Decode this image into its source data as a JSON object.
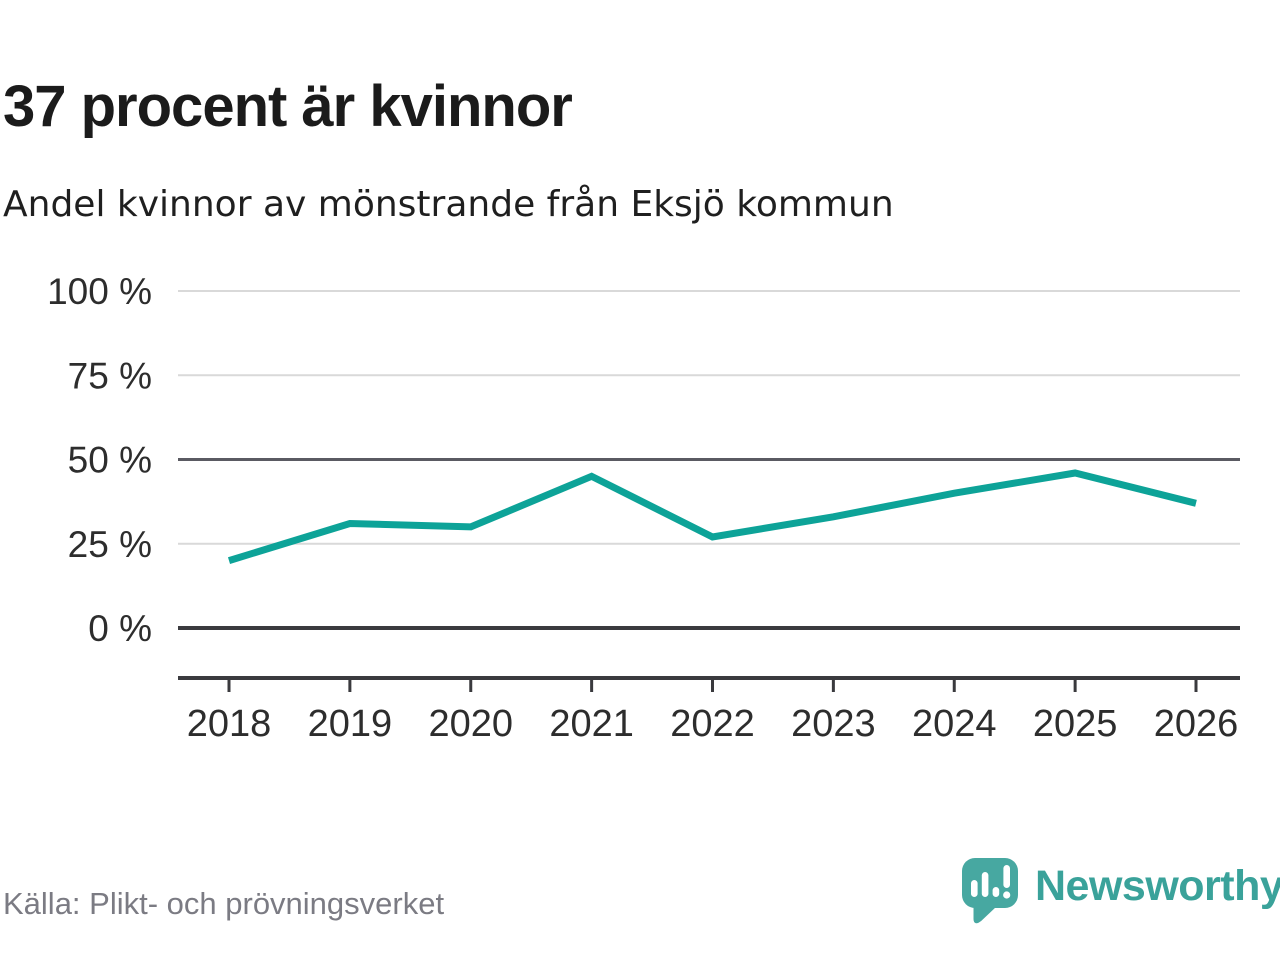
{
  "header": {
    "title": "37 procent är kvinnor",
    "subtitle": "Andel kvinnor av mönstrande från Eksjö kommun"
  },
  "chart_data": {
    "type": "line",
    "title": "37 procent är kvinnor",
    "subtitle": "Andel kvinnor av mönstrande från Eksjö kommun",
    "categories": [
      "2018",
      "2019",
      "2020",
      "2021",
      "2022",
      "2023",
      "2024",
      "2025",
      "2026"
    ],
    "series": [
      {
        "name": "Andel kvinnor av mönstrande",
        "values": [
          20,
          31,
          30,
          45,
          27,
          33,
          40,
          46,
          37
        ]
      }
    ],
    "unit": "%",
    "ylim": [
      0,
      100
    ],
    "yticks": [
      {
        "value": 100,
        "label": "100 %"
      },
      {
        "value": 75,
        "label": "75 %"
      },
      {
        "value": 50,
        "label": "50 %"
      },
      {
        "value": 25,
        "label": "25 %"
      },
      {
        "value": 0,
        "label": "0 %"
      }
    ],
    "grid": "horizontal",
    "legend_position": "none",
    "line_color": "#0da398"
  },
  "footer": {
    "source": "Källa: Plikt- och prövningsverket",
    "logo_text": "Newsworthy"
  },
  "colors": {
    "accent": "#0da398",
    "logo_bubble": "#47a8a1",
    "wordmark": "#3aa29a",
    "text_dark": "#2d2d2d",
    "muted_text": "#7b7b83",
    "grid_light": "#d9d9d9",
    "grid_mid": "#5a5a62",
    "axis_dark": "#3a3a3e"
  }
}
